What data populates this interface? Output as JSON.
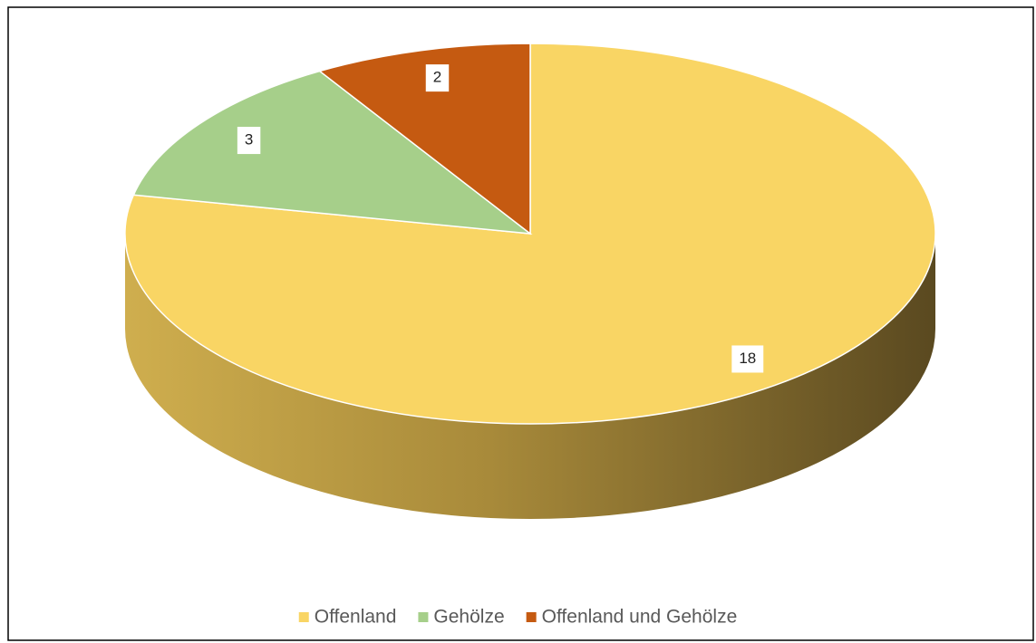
{
  "chart_data": {
    "type": "pie",
    "categories": [
      "Offenland",
      "Gehölze",
      "Offenland und Gehölze"
    ],
    "values": [
      18,
      3,
      2
    ],
    "colors": [
      "#f9d564",
      "#a6cf8a",
      "#c55a11"
    ],
    "legend": "bottom"
  }
}
